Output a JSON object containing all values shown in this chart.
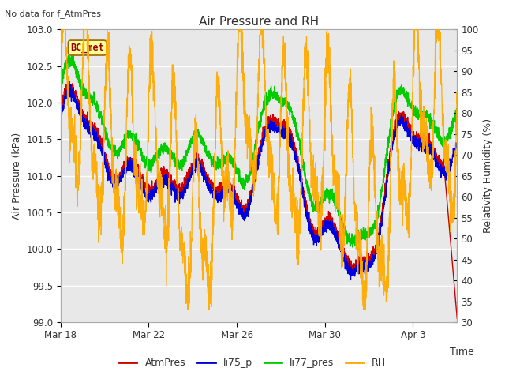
{
  "title": "Air Pressure and RH",
  "subtitle": "No data for f_AtmPres",
  "xlabel": "Time",
  "ylabel_left": "Air Pressure (kPa)",
  "ylabel_right": "Relativity Humidity (%)",
  "ylim_left": [
    99.0,
    103.0
  ],
  "ylim_right": [
    30,
    100
  ],
  "yticks_left": [
    99.0,
    99.5,
    100.0,
    100.5,
    101.0,
    101.5,
    102.0,
    102.5,
    103.0
  ],
  "yticks_right": [
    30,
    35,
    40,
    45,
    50,
    55,
    60,
    65,
    70,
    75,
    80,
    85,
    90,
    95,
    100
  ],
  "xtick_labels": [
    "Mar 18",
    "Mar 22",
    "Mar 26",
    "Mar 30",
    "Apr 3"
  ],
  "legend_labels": [
    "AtmPres",
    "li75_p",
    "li77_pres",
    "RH"
  ],
  "legend_colors": [
    "#cc0000",
    "#0000dd",
    "#00cc00",
    "#ffaa00"
  ],
  "bc_met_label": "BC_met",
  "bc_met_color": "#990000",
  "bc_met_bg": "#ffff99",
  "plot_bg": "#e8e8e8",
  "color_AtmPres": "#cc0000",
  "color_li75_p": "#0000dd",
  "color_li77_pres": "#00cc00",
  "color_RH": "#ffaa00",
  "figsize": [
    6.4,
    4.8
  ],
  "dpi": 100
}
